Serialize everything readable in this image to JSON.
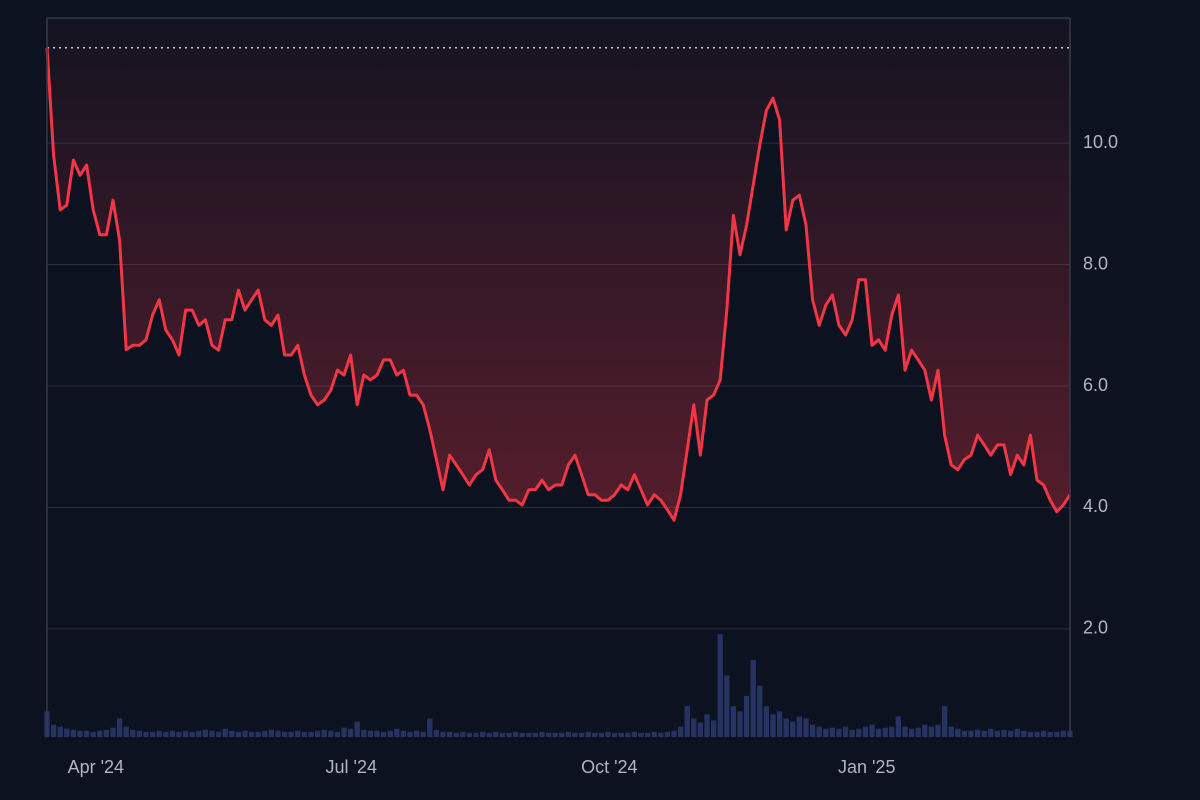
{
  "chart_data": {
    "type": "line",
    "series": [
      {
        "color": "#f23645",
        "values": [
          11.57,
          9.8,
          8.9,
          8.98,
          9.72,
          9.47,
          9.64,
          8.9,
          8.49,
          8.49,
          9.06,
          8.4,
          6.6,
          6.67,
          6.67,
          6.76,
          7.17,
          7.42,
          6.92,
          6.76,
          6.51,
          7.25,
          7.25,
          7.0,
          7.09,
          6.67,
          6.59,
          7.09,
          7.09,
          7.58,
          7.25,
          7.42,
          7.58,
          7.09,
          7.0,
          7.17,
          6.51,
          6.51,
          6.67,
          6.18,
          5.85,
          5.69,
          5.77,
          5.93,
          6.26,
          6.18,
          6.51,
          5.69,
          6.18,
          6.1,
          6.18,
          6.43,
          6.43,
          6.18,
          6.26,
          5.85,
          5.85,
          5.69,
          5.28,
          4.79,
          4.29,
          4.86,
          4.7,
          4.54,
          4.37,
          4.54,
          4.62,
          4.95,
          4.45,
          4.29,
          4.12,
          4.12,
          4.04,
          4.29,
          4.29,
          4.45,
          4.29,
          4.37,
          4.37,
          4.7,
          4.86,
          4.54,
          4.21,
          4.21,
          4.12,
          4.12,
          4.21,
          4.37,
          4.29,
          4.54,
          4.29,
          4.04,
          4.21,
          4.12,
          3.96,
          3.79,
          4.21,
          4.95,
          5.69,
          4.86,
          5.77,
          5.85,
          6.1,
          7.25,
          8.81,
          8.16,
          8.65,
          9.31,
          9.97,
          10.54,
          10.74,
          10.38,
          8.57,
          9.06,
          9.14,
          8.65,
          7.42,
          7.0,
          7.33,
          7.5,
          7.0,
          6.84,
          7.09,
          7.75,
          7.75,
          6.67,
          6.76,
          6.59,
          7.17,
          7.5,
          6.26,
          6.59,
          6.43,
          6.26,
          5.77,
          6.26,
          5.19,
          4.7,
          4.62,
          4.79,
          4.86,
          5.19,
          5.03,
          4.86,
          5.03,
          5.03,
          4.54,
          4.86,
          4.7,
          5.19,
          4.45,
          4.37,
          4.12,
          3.93,
          4.04,
          4.21
        ]
      },
      {
        "type": "bar",
        "axis": "y2",
        "color": "#2c3a6e",
        "values": [
          25,
          12,
          10,
          8,
          7,
          6,
          6,
          5,
          6,
          7,
          9,
          18,
          10,
          7,
          6,
          5,
          5,
          6,
          5,
          6,
          5,
          6,
          5,
          6,
          7,
          6,
          5,
          8,
          6,
          5,
          6,
          5,
          5,
          6,
          7,
          6,
          5,
          5,
          6,
          5,
          5,
          6,
          7,
          6,
          5,
          9,
          8,
          15,
          7,
          6,
          6,
          5,
          6,
          8,
          6,
          5,
          6,
          5,
          18,
          7,
          5,
          5,
          4,
          5,
          4,
          4,
          5,
          4,
          5,
          4,
          4,
          5,
          4,
          4,
          4,
          5,
          4,
          4,
          4,
          5,
          4,
          4,
          5,
          4,
          4,
          5,
          4,
          4,
          4,
          5,
          4,
          4,
          5,
          4,
          5,
          6,
          10,
          30,
          18,
          14,
          22,
          16,
          100,
          60,
          30,
          25,
          40,
          75,
          50,
          30,
          22,
          25,
          18,
          15,
          20,
          18,
          12,
          10,
          8,
          9,
          8,
          10,
          7,
          8,
          10,
          12,
          8,
          9,
          10,
          20,
          10,
          8,
          9,
          12,
          10,
          12,
          30,
          10,
          8,
          6,
          6,
          7,
          6,
          8,
          6,
          7,
          6,
          8,
          6,
          5,
          5,
          6,
          5,
          5,
          6,
          6
        ]
      }
    ],
    "xlim": [
      0,
      155
    ],
    "xticks": [
      {
        "value": 7.4,
        "label": "Apr '24"
      },
      {
        "value": 46.1,
        "label": "Jul '24"
      },
      {
        "value": 85.2,
        "label": "Oct '24"
      },
      {
        "value": 124.2,
        "label": "Jan '25"
      }
    ],
    "ylim": [
      0.22,
      12.06
    ],
    "yticks": [
      {
        "value": 2,
        "label": "2.0"
      },
      {
        "value": 4,
        "label": "4.0"
      },
      {
        "value": 6,
        "label": "6.0"
      },
      {
        "value": 8,
        "label": "8.0"
      },
      {
        "value": 10,
        "label": "10.0"
      }
    ],
    "y2lim": [
      0,
      700
    ],
    "grid": true
  }
}
